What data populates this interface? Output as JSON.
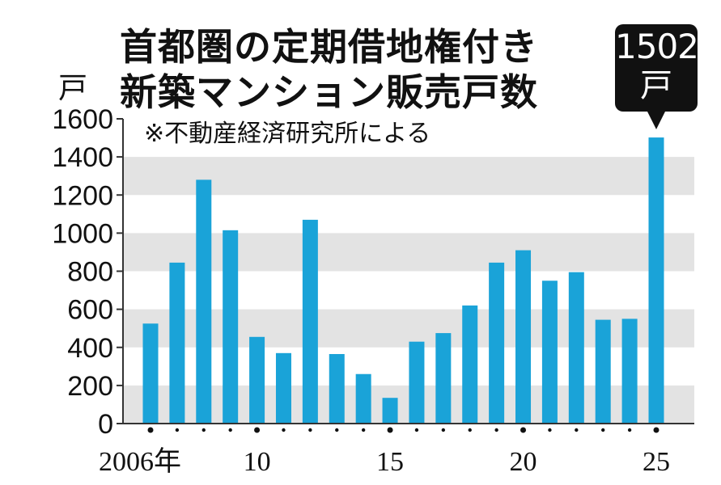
{
  "chart_data": {
    "type": "bar",
    "title": "首都圏の定期借地権付き新築マンション販売戸数",
    "title_line1": "首都圏の定期借地権付き",
    "title_line2": "新築マンション販売戸数",
    "note": "※不動産経済研究所による",
    "ylabel": "戸",
    "ylim": [
      0,
      1600
    ],
    "yticks": [
      0,
      200,
      400,
      600,
      800,
      1000,
      1200,
      1400,
      1600
    ],
    "x": [
      2006,
      2007,
      2008,
      2009,
      2010,
      2011,
      2012,
      2013,
      2014,
      2015,
      2016,
      2017,
      2018,
      2019,
      2020,
      2021,
      2022,
      2023,
      2024,
      2025
    ],
    "x_tick_labels": [
      {
        "year": 2006,
        "label": "2006年"
      },
      {
        "year": 2010,
        "label": "10"
      },
      {
        "year": 2015,
        "label": "15"
      },
      {
        "year": 2020,
        "label": "20"
      },
      {
        "year": 2025,
        "label": "25"
      }
    ],
    "values": [
      525,
      845,
      1280,
      1015,
      455,
      370,
      1070,
      365,
      260,
      135,
      430,
      475,
      620,
      845,
      910,
      750,
      795,
      545,
      550,
      1502
    ],
    "annotation": {
      "year": 2025,
      "value_text": "1502",
      "unit_text": "戸"
    },
    "grid": "alternating-bands",
    "colors": {
      "bar": "#1aa3d8",
      "band": "#e3e3e3",
      "callout": "#111111"
    }
  }
}
